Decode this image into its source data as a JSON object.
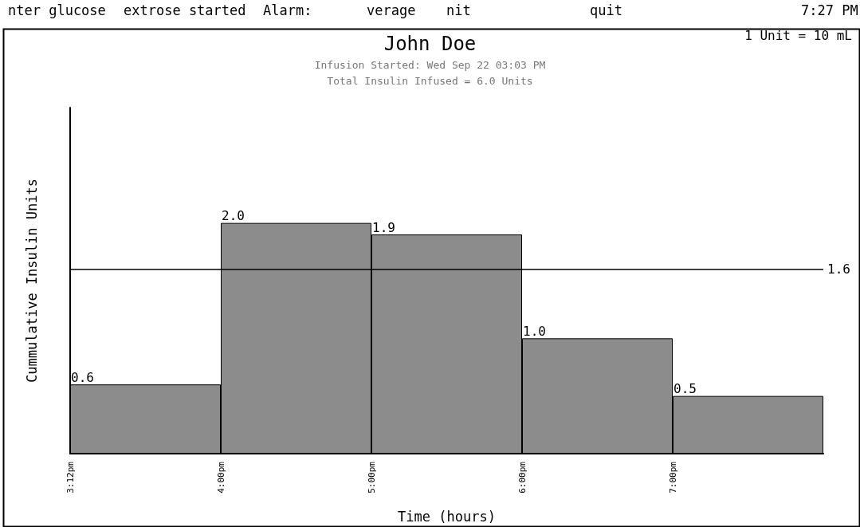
{
  "chart_data": {
    "type": "bar",
    "title": "John Doe",
    "subtitle": "Infusion Started: Wed Sep 22 03:03 PM\nTotal Insulin Infused = 6.0 Units",
    "xlabel": "Time (hours)",
    "ylabel": "Cummulative Insulin Units",
    "categories": [
      "3:12pm",
      "4:00pm",
      "5:00pm",
      "6:00pm",
      "7:00pm"
    ],
    "values": [
      0.6,
      2.0,
      1.9,
      1.0,
      0.5
    ],
    "color": "#8c8c8c",
    "value_labels": [
      "0.6",
      "2.0",
      "1.9",
      "1.0",
      "0.5"
    ],
    "ref_lines": [
      {
        "axis": "y",
        "value": 1.6,
        "label": "1.6",
        "color": "#000000"
      }
    ],
    "annotations": [
      "nter glucose",
      "extrose started",
      "Alarm:",
      "verage",
      "nit",
      "quit",
      "7:27 PM",
      "1 Unit = 10 mL"
    ],
    "grid": false
  }
}
